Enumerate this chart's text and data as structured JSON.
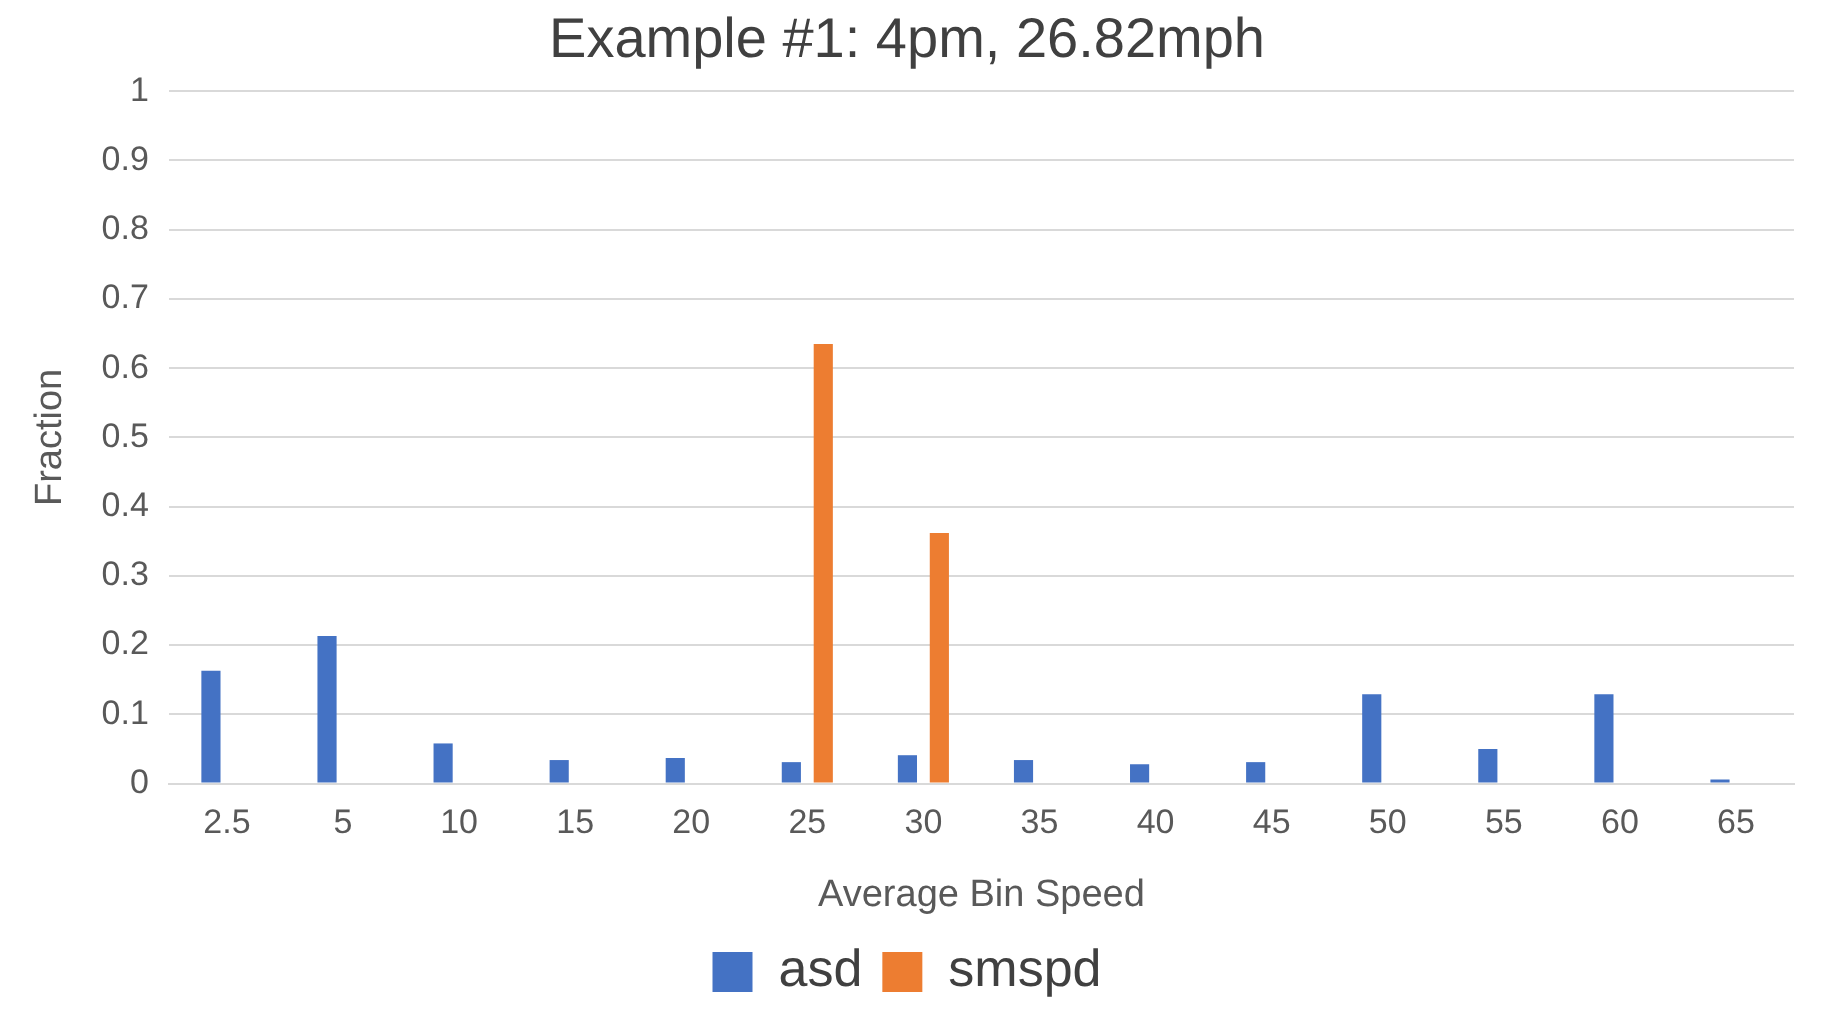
{
  "chart_data": {
    "type": "bar",
    "title": "Example #1: 4pm, 26.82mph",
    "xlabel": "Average Bin Speed",
    "ylabel": "Fraction",
    "categories": [
      "2.5",
      "5",
      "10",
      "15",
      "20",
      "25",
      "30",
      "35",
      "40",
      "45",
      "50",
      "55",
      "60",
      "65"
    ],
    "series": [
      {
        "name": "asd",
        "color": "#4472c4",
        "values": [
          0.163,
          0.213,
          0.058,
          0.034,
          0.037,
          0.031,
          0.041,
          0.034,
          0.028,
          0.031,
          0.129,
          0.05,
          0.129,
          0.006
        ]
      },
      {
        "name": "smspd",
        "color": "#ed7d31",
        "values": [
          0,
          0,
          0,
          0,
          0,
          0.635,
          0.362,
          0,
          0,
          0,
          0,
          0,
          0,
          0
        ]
      }
    ],
    "ylim": [
      0,
      1
    ],
    "yticks": [
      0,
      0.1,
      0.2,
      0.3,
      0.4,
      0.5,
      0.6,
      0.7,
      0.8,
      0.9,
      1
    ],
    "grid": "y",
    "legend": "bottom"
  }
}
